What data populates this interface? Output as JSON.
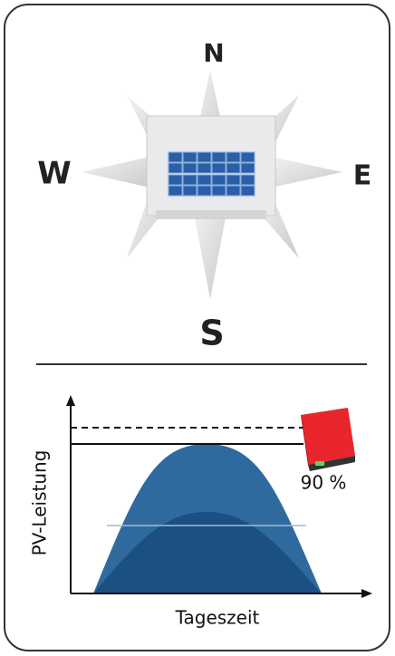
{
  "compass": {
    "north": "N",
    "west": "W",
    "east": "E",
    "south": "S"
  },
  "diagram": {
    "y_label": "PV-Leistung",
    "x_label": "Tageszeit",
    "inverter_label": "90 %"
  }
}
